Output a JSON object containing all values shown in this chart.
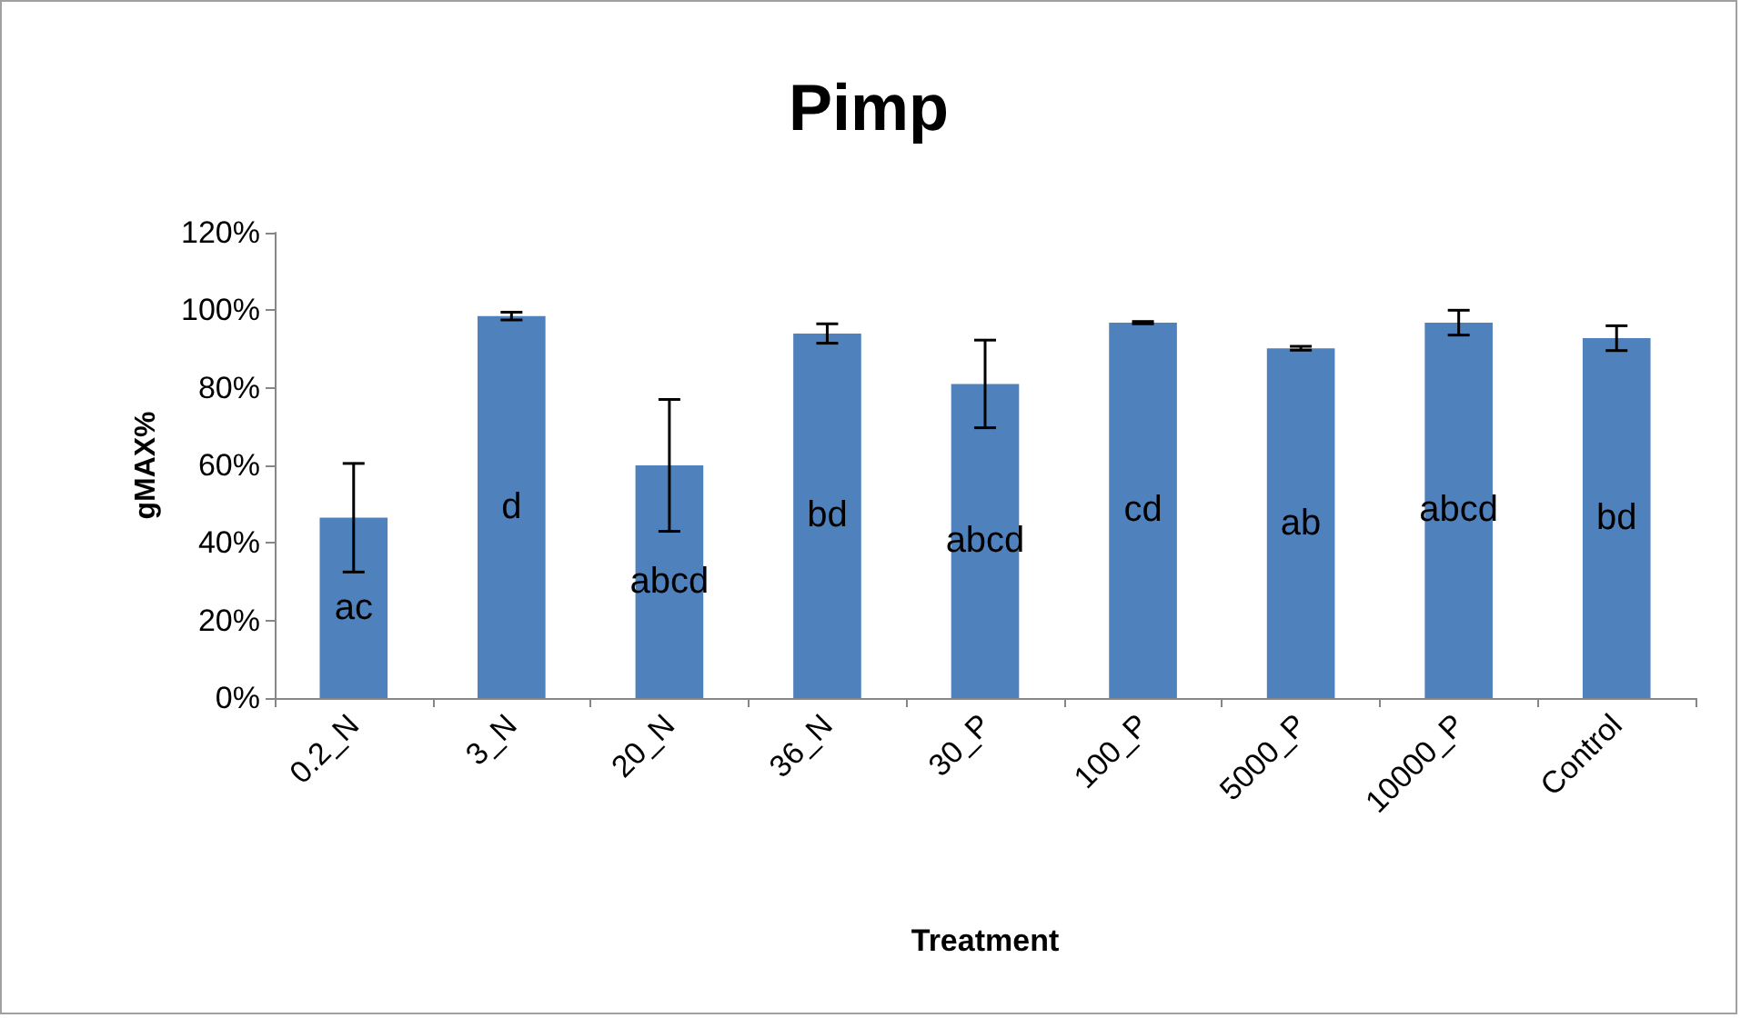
{
  "chart_data": {
    "type": "bar",
    "title": "Pimp",
    "xlabel": "Treatment",
    "ylabel": "gMAX%",
    "categories": [
      "0.2_N",
      "3_N",
      "20_N",
      "36_N",
      "30_P",
      "100_P",
      "5000_P",
      "10000_P",
      "Control"
    ],
    "values": [
      46.5,
      98.5,
      60,
      94,
      81,
      96.8,
      90.2,
      96.8,
      92.8
    ],
    "errors": [
      14,
      1,
      17,
      2.5,
      11.3,
      0.3,
      0.5,
      3.2,
      3.2
    ],
    "color": "#4f81bd",
    "ylim": [
      0,
      120
    ],
    "yticks": [
      {
        "value": 0,
        "label": "0%"
      },
      {
        "value": 20,
        "label": "20%"
      },
      {
        "value": 40,
        "label": "40%"
      },
      {
        "value": 60,
        "label": "60%"
      },
      {
        "value": 80,
        "label": "80%"
      },
      {
        "value": 100,
        "label": "100%"
      },
      {
        "value": 120,
        "label": "120%"
      }
    ],
    "value_labels": [
      "ac",
      "d",
      "abcd",
      "bd",
      "abcd",
      "cd",
      "ab",
      "abcd",
      "bd"
    ],
    "grid": false
  }
}
